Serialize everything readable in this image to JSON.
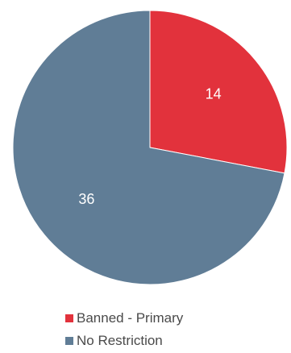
{
  "chart_data": {
    "type": "pie",
    "title": "",
    "slices": [
      {
        "name": "Banned - Primary",
        "value": 14,
        "color": "#E2323C"
      },
      {
        "name": "No Restriction",
        "value": 36,
        "color": "#607D96"
      }
    ],
    "start_angle_deg": 0,
    "direction": "clockwise",
    "legend_position": "bottom",
    "data_labels": true
  }
}
